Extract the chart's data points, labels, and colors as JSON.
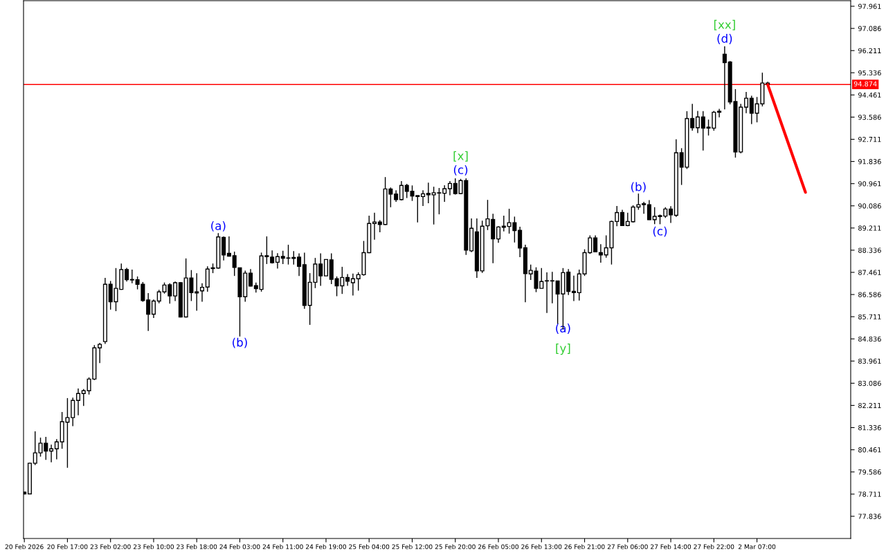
{
  "chart_data": {
    "type": "candlestick",
    "categories": [
      "20 Feb 2026",
      null,
      null,
      null,
      null,
      null,
      null,
      null,
      "20 Feb 17:00",
      null,
      null,
      null,
      null,
      null,
      null,
      null,
      "23 Feb 02:00",
      null,
      null,
      null,
      null,
      null,
      null,
      null,
      "23 Feb 10:00",
      null,
      null,
      null,
      null,
      null,
      null,
      null,
      "23 Feb 18:00",
      null,
      null,
      null,
      null,
      null,
      null,
      null,
      "24 Feb 03:00",
      null,
      null,
      null,
      null,
      null,
      null,
      null,
      "24 Feb 11:00",
      null,
      null,
      null,
      null,
      null,
      null,
      null,
      "24 Feb 19:00",
      null,
      null,
      null,
      null,
      null,
      null,
      null,
      "25 Feb 04:00",
      null,
      null,
      null,
      null,
      null,
      null,
      null,
      "25 Feb 12:00",
      null,
      null,
      null,
      null,
      null,
      null,
      null,
      "25 Feb 20:00",
      null,
      null,
      null,
      null,
      null,
      null,
      null,
      "26 Feb 05:00",
      null,
      null,
      null,
      null,
      null,
      null,
      null,
      "26 Feb 13:00",
      null,
      null,
      null,
      null,
      null,
      null,
      null,
      "26 Feb 21:00",
      null,
      null,
      null,
      null,
      null,
      null,
      null,
      "27 Feb 06:00",
      null,
      null,
      null,
      null,
      null,
      null,
      null,
      "27 Feb 14:00",
      null,
      null,
      null,
      null,
      null,
      null,
      null,
      "27 Feb 22:00",
      null,
      null,
      null,
      null,
      null,
      null,
      null,
      "2 Mar 07:00",
      null,
      null,
      null,
      null,
      null,
      null,
      null,
      null,
      null,
      null,
      null,
      null,
      null,
      null,
      null,
      null,
      null
    ],
    "ohlc": [
      [
        78.79,
        78.8,
        78.7,
        78.72
      ],
      [
        78.72,
        79.95,
        78.71,
        79.93
      ],
      [
        79.93,
        81.19,
        79.86,
        80.34
      ],
      [
        80.34,
        80.94,
        80.19,
        80.72
      ],
      [
        80.72,
        80.97,
        80.06,
        80.41
      ],
      [
        80.41,
        80.66,
        79.97,
        80.5
      ],
      [
        80.5,
        80.88,
        80.08,
        80.77
      ],
      [
        80.77,
        81.95,
        80.5,
        81.57
      ],
      [
        81.55,
        82.5,
        79.75,
        81.73
      ],
      [
        81.73,
        82.52,
        81.39,
        82.41
      ],
      [
        82.41,
        82.88,
        81.82,
        82.68
      ],
      [
        82.68,
        82.86,
        82.19,
        82.79
      ],
      [
        82.79,
        83.32,
        82.64,
        83.25
      ],
      [
        83.25,
        84.59,
        83.21,
        84.48
      ],
      [
        84.48,
        84.68,
        83.88,
        84.62
      ],
      [
        84.73,
        87.24,
        84.64,
        86.99
      ],
      [
        86.99,
        87.12,
        85.99,
        86.3
      ],
      [
        86.3,
        87.63,
        85.93,
        86.83
      ],
      [
        86.79,
        87.81,
        86.77,
        87.57
      ],
      [
        87.57,
        87.64,
        87.1,
        87.17
      ],
      [
        87.18,
        87.57,
        87.03,
        87.16
      ],
      [
        87.17,
        87.3,
        86.79,
        86.99
      ],
      [
        86.99,
        87.08,
        86.3,
        86.35
      ],
      [
        86.37,
        86.64,
        85.15,
        85.81
      ],
      [
        85.81,
        86.39,
        85.66,
        86.33
      ],
      [
        86.33,
        86.77,
        86.24,
        86.69
      ],
      [
        86.69,
        87.06,
        86.62,
        86.96
      ],
      [
        86.97,
        87.03,
        86.23,
        86.53
      ],
      [
        86.53,
        87.1,
        86.33,
        87.05
      ],
      [
        87.05,
        87.08,
        85.68,
        85.7
      ],
      [
        85.7,
        88.01,
        85.68,
        87.24
      ],
      [
        87.24,
        87.55,
        86.33,
        86.66
      ],
      [
        86.69,
        87.43,
        85.95,
        86.65
      ],
      [
        86.73,
        87.03,
        86.3,
        86.87
      ],
      [
        86.88,
        87.7,
        86.7,
        87.59
      ],
      [
        87.61,
        87.81,
        87.43,
        87.64
      ],
      [
        87.63,
        89.01,
        87.61,
        88.86
      ],
      [
        88.84,
        88.88,
        87.93,
        88.15
      ],
      [
        88.21,
        88.88,
        88.08,
        88.1
      ],
      [
        88.12,
        88.28,
        87.32,
        87.66
      ],
      [
        87.64,
        87.64,
        84.93,
        86.5
      ],
      [
        86.5,
        87.53,
        86.3,
        87.43
      ],
      [
        87.43,
        87.59,
        86.9,
        86.92
      ],
      [
        86.94,
        87.06,
        86.66,
        86.82
      ],
      [
        86.79,
        88.24,
        86.7,
        88.11
      ],
      [
        88.12,
        88.88,
        87.79,
        88.08
      ],
      [
        88.06,
        88.33,
        87.81,
        87.84
      ],
      [
        87.86,
        88.22,
        87.61,
        88.08
      ],
      [
        88.09,
        88.31,
        87.79,
        88.02
      ],
      [
        88.03,
        88.55,
        87.77,
        88.02
      ],
      [
        88.05,
        88.3,
        87.77,
        88.01
      ],
      [
        88.06,
        88.21,
        87.32,
        87.7
      ],
      [
        87.76,
        88.24,
        86.02,
        86.16
      ],
      [
        86.16,
        87.43,
        85.39,
        87.07
      ],
      [
        87.07,
        88.03,
        86.84,
        87.79
      ],
      [
        87.79,
        88.21,
        86.93,
        87.32
      ],
      [
        87.32,
        87.97,
        87.32,
        87.97
      ],
      [
        87.95,
        88.21,
        87.0,
        87.19
      ],
      [
        87.21,
        87.3,
        86.52,
        86.93
      ],
      [
        86.93,
        87.68,
        86.61,
        87.26
      ],
      [
        87.26,
        87.39,
        86.93,
        87.11
      ],
      [
        87.05,
        87.41,
        86.55,
        87.21
      ],
      [
        87.21,
        87.46,
        86.74,
        87.37
      ],
      [
        87.37,
        88.7,
        87.33,
        88.24
      ],
      [
        88.24,
        89.7,
        88.22,
        89.39
      ],
      [
        89.39,
        89.81,
        88.75,
        89.45
      ],
      [
        89.45,
        89.52,
        89.04,
        89.35
      ],
      [
        89.35,
        91.22,
        89.33,
        90.75
      ],
      [
        90.75,
        90.81,
        90.03,
        90.55
      ],
      [
        90.55,
        90.7,
        90.24,
        90.33
      ],
      [
        90.33,
        91.06,
        90.3,
        90.89
      ],
      [
        90.89,
        90.95,
        90.39,
        90.66
      ],
      [
        90.66,
        90.89,
        90.28,
        90.47
      ],
      [
        90.49,
        90.49,
        89.43,
        90.45
      ],
      [
        90.45,
        90.7,
        90.08,
        90.56
      ],
      [
        90.58,
        91.0,
        90.19,
        90.52
      ],
      [
        90.52,
        90.84,
        89.35,
        90.6
      ],
      [
        90.59,
        90.79,
        89.75,
        90.6
      ],
      [
        90.58,
        90.9,
        90.24,
        90.76
      ],
      [
        90.76,
        91.06,
        90.5,
        90.97
      ],
      [
        90.97,
        91.17,
        90.53,
        90.57
      ],
      [
        90.57,
        91.15,
        90.55,
        91.08
      ],
      [
        91.08,
        91.17,
        88.15,
        88.34
      ],
      [
        88.31,
        89.59,
        88.26,
        89.2
      ],
      [
        89.06,
        89.59,
        87.24,
        87.52
      ],
      [
        87.52,
        89.5,
        87.44,
        89.28
      ],
      [
        89.3,
        90.32,
        89.13,
        89.57
      ],
      [
        89.55,
        89.77,
        87.82,
        88.78
      ],
      [
        88.78,
        89.28,
        88.63,
        89.25
      ],
      [
        89.28,
        89.7,
        89.08,
        89.24
      ],
      [
        89.27,
        89.97,
        88.99,
        89.42
      ],
      [
        89.42,
        89.66,
        88.64,
        89.11
      ],
      [
        89.12,
        89.26,
        88.06,
        88.42
      ],
      [
        88.43,
        88.55,
        86.28,
        87.41
      ],
      [
        87.4,
        87.77,
        87.16,
        87.54
      ],
      [
        87.51,
        87.66,
        86.68,
        86.83
      ],
      [
        86.83,
        87.63,
        86.83,
        87.1
      ],
      [
        87.12,
        87.46,
        85.86,
        87.13
      ],
      [
        87.13,
        87.48,
        86.24,
        87.12
      ],
      [
        87.12,
        87.13,
        85.43,
        86.61
      ],
      [
        86.61,
        87.63,
        85.21,
        87.45
      ],
      [
        87.47,
        87.59,
        86.57,
        86.71
      ],
      [
        86.71,
        87.33,
        86.33,
        86.66
      ],
      [
        86.66,
        87.57,
        86.35,
        87.4
      ],
      [
        87.4,
        88.37,
        87.32,
        88.24
      ],
      [
        88.24,
        88.92,
        88.19,
        88.82
      ],
      [
        88.82,
        88.92,
        88.26,
        88.27
      ],
      [
        88.24,
        88.57,
        87.84,
        88.15
      ],
      [
        88.15,
        88.92,
        88.04,
        88.43
      ],
      [
        88.43,
        89.5,
        87.77,
        89.47
      ],
      [
        89.47,
        90.08,
        89.28,
        89.82
      ],
      [
        89.82,
        89.93,
        89.29,
        89.31
      ],
      [
        89.31,
        89.81,
        89.28,
        89.47
      ],
      [
        89.46,
        90.11,
        89.43,
        90.04
      ],
      [
        90.04,
        90.57,
        89.93,
        90.13
      ],
      [
        90.17,
        90.24,
        89.77,
        90.13
      ],
      [
        90.13,
        90.31,
        89.53,
        89.54
      ],
      [
        89.54,
        90.03,
        89.36,
        89.67
      ],
      [
        89.7,
        89.74,
        89.36,
        89.66
      ],
      [
        89.68,
        90.03,
        89.61,
        89.96
      ],
      [
        89.96,
        90.07,
        89.41,
        89.73
      ],
      [
        89.71,
        92.71,
        89.65,
        92.18
      ],
      [
        92.18,
        92.36,
        90.91,
        91.61
      ],
      [
        91.61,
        93.82,
        91.54,
        93.53
      ],
      [
        93.53,
        94.11,
        93.05,
        93.17
      ],
      [
        93.17,
        93.83,
        92.96,
        93.59
      ],
      [
        93.59,
        93.82,
        92.27,
        93.15
      ],
      [
        93.19,
        93.49,
        92.86,
        93.15
      ],
      [
        93.15,
        93.83,
        93.05,
        93.78
      ],
      [
        93.82,
        93.91,
        93.58,
        93.78
      ],
      [
        96.07,
        96.38,
        93.89,
        95.74
      ],
      [
        95.76,
        95.8,
        94.09,
        94.18
      ],
      [
        94.2,
        94.69,
        91.99,
        92.21
      ],
      [
        92.21,
        94.11,
        92.16,
        93.98
      ],
      [
        93.98,
        94.58,
        93.74,
        94.33
      ],
      [
        94.33,
        94.43,
        93.31,
        93.74
      ],
      [
        93.74,
        94.38,
        93.38,
        94.11
      ],
      [
        94.11,
        95.34,
        94.01,
        94.93
      ],
      [
        94.93,
        94.98,
        94.86,
        94.87
      ],
      null,
      null,
      null,
      null,
      null,
      null,
      null,
      null,
      null,
      null,
      null,
      null,
      null,
      null,
      null
    ],
    "series": [
      {
        "type": "line",
        "color": "#ff0000",
        "values": [
          null,
          null,
          null,
          null,
          null,
          null,
          null,
          null,
          null,
          null,
          null,
          null,
          null,
          null,
          null,
          null,
          null,
          null,
          null,
          null,
          null,
          null,
          null,
          null,
          null,
          null,
          null,
          null,
          null,
          null,
          null,
          null,
          null,
          null,
          null,
          null,
          null,
          null,
          null,
          null,
          null,
          null,
          null,
          null,
          null,
          null,
          null,
          null,
          null,
          null,
          null,
          null,
          null,
          null,
          null,
          null,
          null,
          null,
          null,
          null,
          null,
          null,
          null,
          null,
          null,
          null,
          null,
          null,
          null,
          null,
          null,
          null,
          null,
          null,
          null,
          null,
          null,
          null,
          null,
          null,
          null,
          null,
          null,
          null,
          null,
          null,
          null,
          null,
          null,
          null,
          null,
          null,
          null,
          null,
          null,
          null,
          null,
          null,
          null,
          null,
          null,
          null,
          null,
          null,
          null,
          null,
          null,
          null,
          null,
          null,
          null,
          null,
          null,
          null,
          null,
          null,
          null,
          null,
          null,
          null,
          null,
          null,
          null,
          null,
          null,
          null,
          null,
          null,
          null,
          null,
          null,
          null,
          null,
          null,
          null,
          null,
          null,
          null,
          94.87,
          null,
          null,
          null,
          null,
          null,
          null,
          90.62,
          null,
          null,
          null,
          null,
          null,
          null,
          null,
          null
        ]
      }
    ],
    "ref_lines": [
      {
        "axis": "y",
        "value": 94.874,
        "label": "94.874",
        "color": "#ff0000"
      }
    ],
    "annotations": [
      "(a)",
      "(b)",
      "[x]",
      "(c)",
      "(a)",
      "[y]",
      "(b)",
      "(c)",
      "[xx]",
      "(d)"
    ],
    "ylim": [
      76.96,
      98.18
    ],
    "yticks": [
      77.836,
      78.711,
      79.586,
      80.461,
      81.336,
      82.211,
      83.086,
      83.961,
      84.836,
      85.711,
      86.586,
      87.461,
      88.336,
      89.211,
      90.086,
      90.961,
      91.836,
      92.711,
      93.586,
      94.461,
      95.336,
      96.211,
      97.086,
      97.961
    ],
    "grid": false,
    "legend": false
  }
}
